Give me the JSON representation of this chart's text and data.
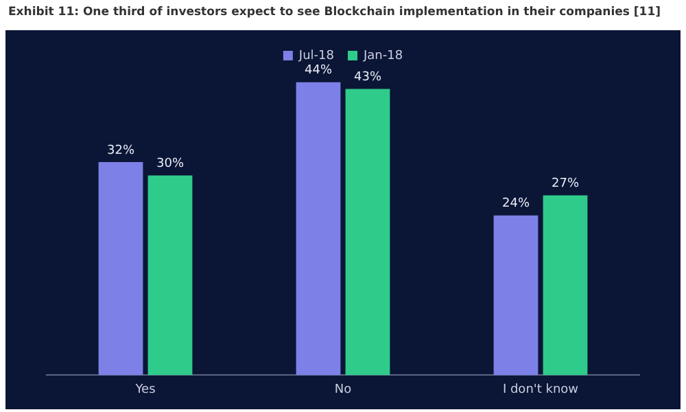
{
  "chart_data": {
    "type": "bar",
    "title": "Exhibit 11: One third of investors expect to see Blockchain implementation in their companies [11]",
    "categories": [
      "Yes",
      "No",
      "I don't know"
    ],
    "series": [
      {
        "name": "Jul-18",
        "color": "#7d80e6",
        "values": [
          32,
          44,
          24
        ],
        "value_labels": [
          "32%",
          "44%",
          "24%"
        ]
      },
      {
        "name": "Jan-18",
        "color": "#2fcb8b",
        "values": [
          30,
          43,
          27
        ],
        "value_labels": [
          "30%",
          "43%",
          "27%"
        ]
      }
    ],
    "legend": "top",
    "grid": false
  }
}
